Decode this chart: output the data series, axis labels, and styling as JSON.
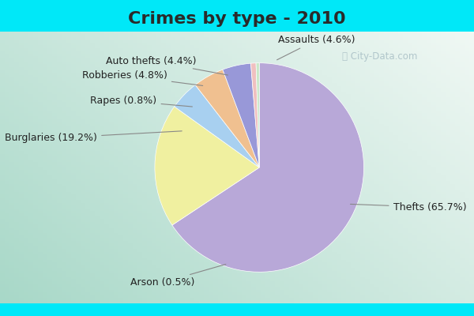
{
  "title": "Crimes by type - 2010",
  "title_fontsize": 16,
  "title_fontweight": "bold",
  "title_color": "#2a2a2a",
  "labels": [
    "Thefts",
    "Burglaries",
    "Assaults",
    "Robberies",
    "Auto thefts",
    "Rapes",
    "Arson"
  ],
  "values": [
    65.7,
    19.2,
    4.6,
    4.8,
    4.4,
    0.8,
    0.5
  ],
  "colors": [
    "#b8a8d8",
    "#f0f0a0",
    "#a8d0f0",
    "#f0c090",
    "#9898d8",
    "#f0c0c0",
    "#c8e8c8"
  ],
  "cyan_color": "#00e8f8",
  "bg_color_topleft": "#a8d8c8",
  "bg_color_center": "#e8f4f0",
  "bg_color_right": "#e0ecf8",
  "label_fontsize": 9,
  "startangle": 90,
  "watermark": "City-Data.com"
}
